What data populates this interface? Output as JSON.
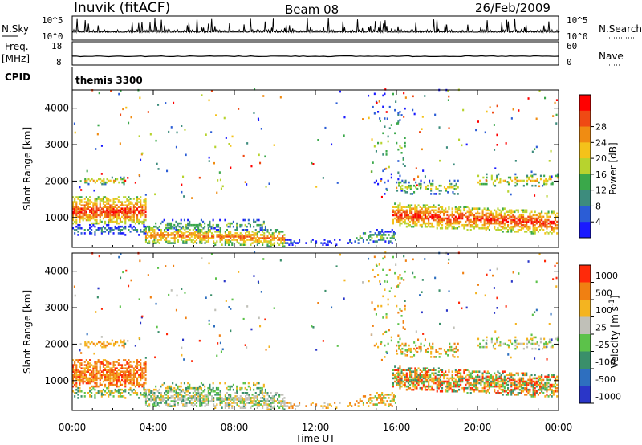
{
  "header": {
    "title": "Inuvik (fitACF)",
    "beam": "Beam 08",
    "date": "26/Feb/2009"
  },
  "top_panels": {
    "nsky_label": "N.Sky",
    "nsearch_label": "N.Search",
    "nsky_ticks": [
      "10^5",
      "10^0"
    ],
    "nsearch_ticks": [
      "10^5",
      "10^0"
    ],
    "freq_label_1": "Freq.",
    "freq_label_2": "[MHz]",
    "freq_ticks": [
      "18",
      "8"
    ],
    "nave_label": "Nave",
    "nave_ticks": [
      "60",
      "0"
    ],
    "cpid_label": "CPID",
    "cpid_value": "themis 3300"
  },
  "chart_data": [
    {
      "type": "heatmap",
      "name": "power",
      "ylabel": "Slant Range [km]",
      "y_ticks": [
        1000,
        2000,
        3000,
        4000
      ],
      "ylim": [
        180,
        4500
      ],
      "xlim": [
        0,
        24
      ],
      "colorbar": {
        "label": "Power [dB]",
        "ticks": [
          4,
          8,
          12,
          16,
          20,
          24,
          28
        ],
        "colors": [
          "#1a1aff",
          "#2b5dd6",
          "#3d8c7d",
          "#3aa84a",
          "#b7d32e",
          "#f4c21a",
          "#f08c12",
          "#ef4a14",
          "#ff0000"
        ]
      }
    },
    {
      "type": "heatmap",
      "name": "velocity",
      "ylabel": "Slant Range [km]",
      "y_ticks": [
        1000,
        2000,
        3000,
        4000
      ],
      "ylim": [
        180,
        4500
      ],
      "xlim": [
        0,
        24
      ],
      "colorbar": {
        "label": "Velocity [m s^-1]",
        "ticks": [
          1000,
          500,
          100,
          25,
          -25,
          -100,
          -500,
          -1000
        ],
        "colors": [
          "#2a36c8",
          "#2e6fbf",
          "#3a8f6a",
          "#5cc24a",
          "#c0c0b8",
          "#f4b420",
          "#f08012",
          "#ff2a0a"
        ]
      }
    }
  ],
  "x_axis": {
    "ticks": [
      "00:00",
      "04:00",
      "08:00",
      "12:00",
      "16:00",
      "20:00",
      "00:00"
    ],
    "label": "Time UT"
  },
  "colors": {
    "frame": "#000000",
    "background": "#ffffff"
  }
}
